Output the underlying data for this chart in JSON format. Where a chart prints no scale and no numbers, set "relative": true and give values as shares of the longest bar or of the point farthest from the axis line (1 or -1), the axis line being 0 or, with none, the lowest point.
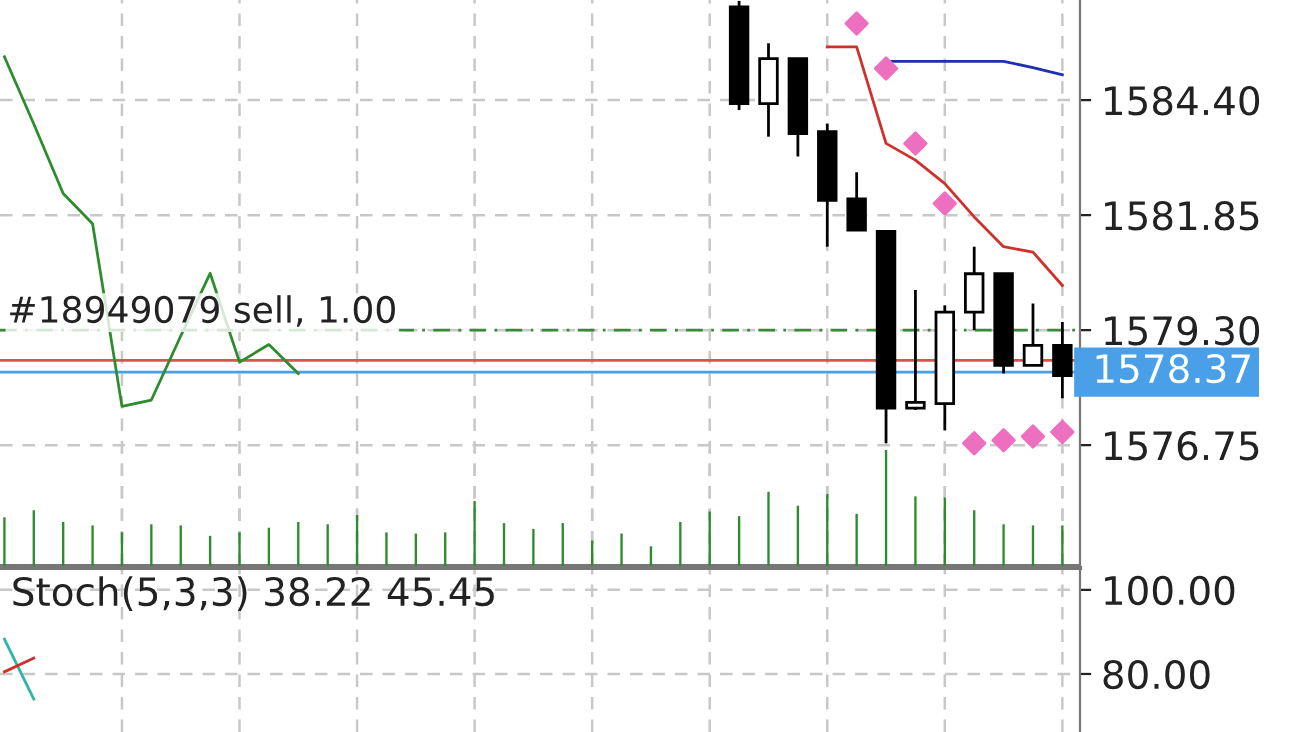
{
  "chart_data": [
    {
      "type": "candlestick",
      "categories": [
        null,
        null,
        null,
        null,
        null,
        null,
        null,
        null,
        null,
        null,
        null,
        null,
        null,
        null,
        null,
        null,
        null,
        null,
        null,
        null,
        null,
        null,
        null,
        null,
        null,
        null,
        null,
        null,
        null,
        null,
        null,
        null,
        null,
        null,
        null,
        null,
        null
      ],
      "ohlc": [
        null,
        null,
        null,
        null,
        null,
        null,
        null,
        null,
        null,
        null,
        null,
        null,
        null,
        null,
        null,
        null,
        null,
        null,
        null,
        null,
        null,
        null,
        null,
        null,
        null,
        [
          1586.47,
          1586.6,
          1584.18,
          1584.32
        ],
        [
          1584.32,
          1585.66,
          1583.59,
          1585.32
        ],
        [
          1585.32,
          1585.32,
          1583.15,
          1583.66
        ],
        [
          1583.7,
          1583.88,
          1581.15,
          1582.18
        ],
        [
          1582.21,
          1582.8,
          1581.52,
          1581.52
        ],
        [
          1581.49,
          1581.49,
          1576.79,
          1577.57
        ],
        [
          1577.57,
          1580.19,
          1577.53,
          1577.7
        ],
        [
          1577.67,
          1579.85,
          1577.08,
          1579.7
        ],
        [
          1579.7,
          1581.15,
          1579.3,
          1580.55
        ],
        [
          1580.55,
          1580.55,
          1578.34,
          1578.52
        ],
        [
          1578.52,
          1579.89,
          1578.52,
          1578.96
        ],
        [
          1578.96,
          1579.48,
          1577.79,
          1578.29
        ]
      ],
      "series": [
        {
          "type": "line",
          "color": "#2e8b2e",
          "values": [
            1585.36,
            1583.87,
            1582.33,
            1581.66,
            1577.61,
            1577.75,
            1579.17,
            1580.56,
            1578.59,
            1578.98,
            1578.34,
            null,
            null,
            null,
            null,
            null,
            null,
            null,
            null,
            null,
            null,
            null,
            null,
            null,
            null,
            null,
            null,
            null,
            null,
            null,
            null,
            null,
            null,
            null,
            null,
            null,
            null
          ]
        },
        {
          "type": "line",
          "color": "#d0302a",
          "values": [
            null,
            null,
            null,
            null,
            null,
            null,
            null,
            null,
            null,
            null,
            null,
            null,
            null,
            null,
            null,
            null,
            null,
            null,
            null,
            null,
            null,
            null,
            null,
            null,
            null,
            null,
            null,
            null,
            1585.58,
            1585.58,
            1583.44,
            1583.07,
            1582.55,
            1581.81,
            1581.15,
            1581.03,
            1580.29
          ]
        },
        {
          "type": "line",
          "color": "#1f2fb0",
          "values": [
            null,
            null,
            null,
            null,
            null,
            null,
            null,
            null,
            null,
            null,
            null,
            null,
            null,
            null,
            null,
            null,
            null,
            null,
            null,
            null,
            null,
            null,
            null,
            null,
            null,
            null,
            null,
            null,
            null,
            null,
            1585.26,
            1585.26,
            1585.26,
            1585.26,
            1585.26,
            1585.12,
            1584.96
          ]
        },
        {
          "type": "scatter",
          "color": "#ee6fc0",
          "marker": "diamond",
          "values": [
            null,
            null,
            null,
            null,
            null,
            null,
            null,
            null,
            null,
            null,
            null,
            null,
            null,
            null,
            null,
            null,
            null,
            null,
            null,
            null,
            null,
            null,
            null,
            null,
            null,
            null,
            null,
            null,
            null,
            1586.1,
            1585.1,
            1583.44,
            1582.11,
            1576.79,
            1576.86,
            1576.94,
            1577.04
          ]
        }
      ],
      "ylim": [
        1574.07,
        1586.62
      ],
      "yticks": [
        {
          "value": 1584.4,
          "label": "1584.40"
        },
        {
          "value": 1581.85,
          "label": "1581.85"
        },
        {
          "value": 1579.3,
          "label": "1579.30"
        },
        {
          "value": 1576.75,
          "label": "1576.75"
        }
      ],
      "ref_lines": [
        {
          "axis": "y",
          "value": 1579.3,
          "label": "#18949079 sell, 1.00",
          "color": "#3a8a3a",
          "line_style": "dashed"
        },
        {
          "axis": "y",
          "value": 1578.63,
          "color": "#d9534f",
          "line_style": "solid"
        },
        {
          "axis": "y",
          "value": 1578.37,
          "label": "1578.37",
          "color": "#4aa0e8",
          "line_style": "solid"
        }
      ],
      "grid": true,
      "tick_labels": "y"
    },
    {
      "type": "bar",
      "relative": true,
      "color": "#2e8b2e",
      "categories": [
        null,
        null,
        null,
        null,
        null,
        null,
        null,
        null,
        null,
        null,
        null,
        null,
        null,
        null,
        null,
        null,
        null,
        null,
        null,
        null,
        null,
        null,
        null,
        null,
        null,
        null,
        null,
        null,
        null,
        null,
        null,
        null,
        null,
        null,
        null,
        null,
        null
      ],
      "values": [
        0.42,
        0.48,
        0.38,
        0.35,
        0.29,
        0.36,
        0.35,
        0.26,
        0.29,
        0.33,
        0.38,
        0.36,
        0.44,
        0.29,
        0.28,
        0.29,
        0.56,
        0.37,
        0.32,
        0.37,
        0.22,
        0.28,
        0.17,
        0.38,
        0.47,
        0.43,
        0.64,
        0.52,
        0.62,
        0.45,
        1,
        0.6,
        0.59,
        0.48,
        0.36,
        0.35,
        0.35
      ],
      "grid": "x",
      "tick_labels": false
    },
    {
      "type": "line",
      "categories": [
        null,
        null,
        null,
        null,
        null,
        null,
        null,
        null,
        null,
        null,
        null,
        null,
        null,
        null,
        null,
        null,
        null,
        null,
        null,
        null,
        null,
        null,
        null,
        null,
        null,
        null,
        null,
        null,
        null,
        null,
        null,
        null,
        null,
        null,
        null,
        null,
        null
      ],
      "series": [
        {
          "color": "#2fb5a8",
          "values": [
            88.3,
            74,
            null,
            null,
            null,
            null,
            null,
            null,
            null,
            null,
            null,
            null,
            null,
            null,
            null,
            null,
            null,
            null,
            null,
            null,
            null,
            null,
            null,
            null,
            null,
            null,
            null,
            null,
            null,
            null,
            null,
            null,
            null,
            null,
            null,
            null,
            null
          ]
        },
        {
          "color": "#d0302a",
          "values": [
            80.5,
            83.8,
            null,
            null,
            null,
            null,
            null,
            null,
            null,
            null,
            null,
            null,
            null,
            null,
            null,
            null,
            null,
            null,
            null,
            null,
            null,
            null,
            null,
            null,
            null,
            null,
            null,
            null,
            null,
            null,
            null,
            null,
            null,
            null,
            null,
            null,
            null
          ]
        }
      ],
      "ylim": [
        66.2,
        105.2
      ],
      "yticks": [
        {
          "value": 100,
          "label": "100.00"
        },
        {
          "value": 80,
          "label": "80.00"
        }
      ],
      "annotations": [
        "Stoch(5,3,3) 38.22 45.45"
      ],
      "grid": true,
      "tick_labels": "y"
    }
  ]
}
